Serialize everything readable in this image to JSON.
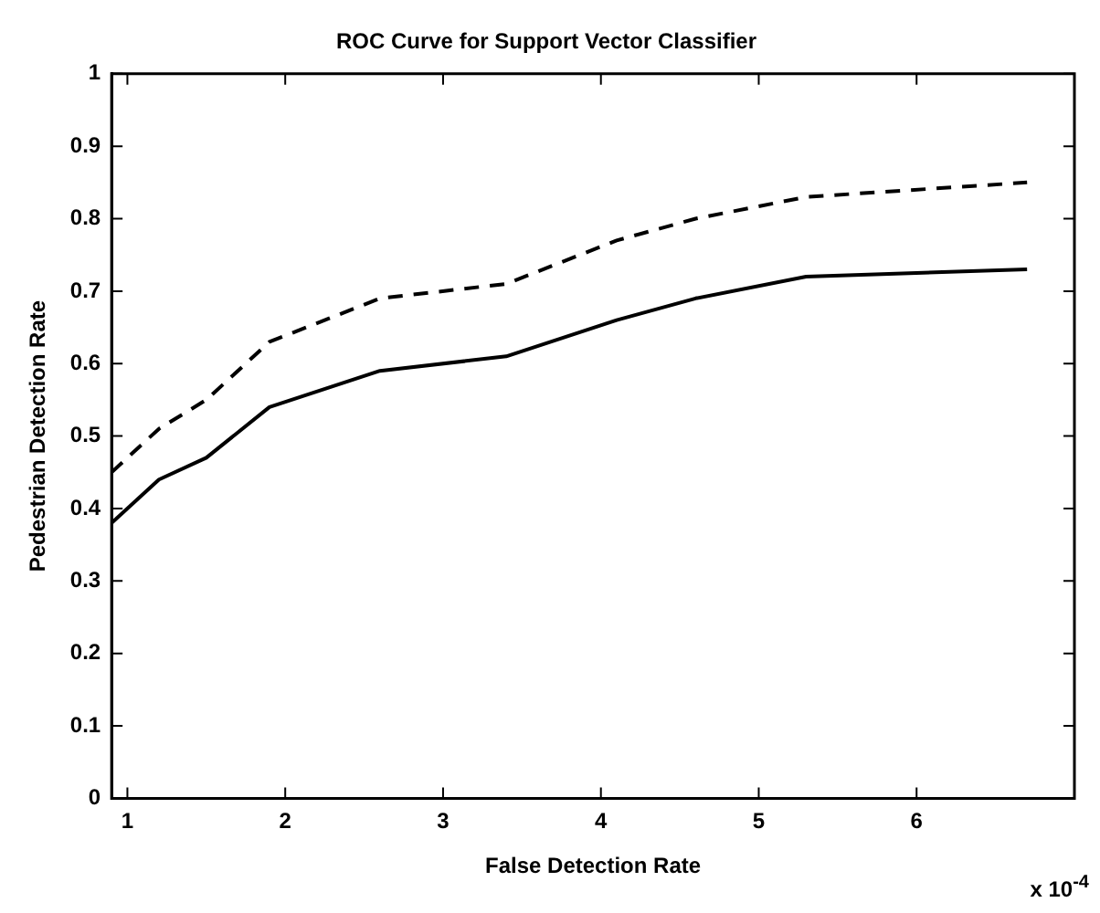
{
  "chart_data": {
    "type": "line",
    "title": "ROC Curve for Support Vector Classifier",
    "xlabel": "False Detection Rate",
    "ylabel": "Pedestrian Detection Rate",
    "annotations": [
      "x 10$^{-4}$"
    ],
    "xlim": [
      0.9,
      7
    ],
    "xticks": [
      1,
      2,
      3,
      4,
      5,
      6
    ],
    "ylim": [
      0,
      1
    ],
    "yticks": [
      0,
      0.1,
      0.2,
      0.3,
      0.4,
      0.5,
      0.6,
      0.7,
      0.8,
      0.9,
      1
    ],
    "grid": false,
    "legend": false,
    "marker": "none",
    "series": [
      {
        "color": "#000000",
        "line_style": "solid",
        "x": [
          0.9,
          1.2,
          1.5,
          1.9,
          2.6,
          3.4,
          4.1,
          4.6,
          5.3,
          6.7
        ],
        "values": [
          0.38,
          0.44,
          0.47,
          0.54,
          0.59,
          0.61,
          0.66,
          0.69,
          0.72,
          0.73
        ]
      },
      {
        "color": "#000000",
        "line_style": "dashed",
        "x": [
          0.9,
          1.2,
          1.5,
          1.9,
          2.6,
          3.4,
          4.1,
          4.6,
          5.3,
          6.7
        ],
        "values": [
          0.45,
          0.51,
          0.55,
          0.63,
          0.69,
          0.71,
          0.77,
          0.8,
          0.83,
          0.85
        ]
      }
    ]
  }
}
